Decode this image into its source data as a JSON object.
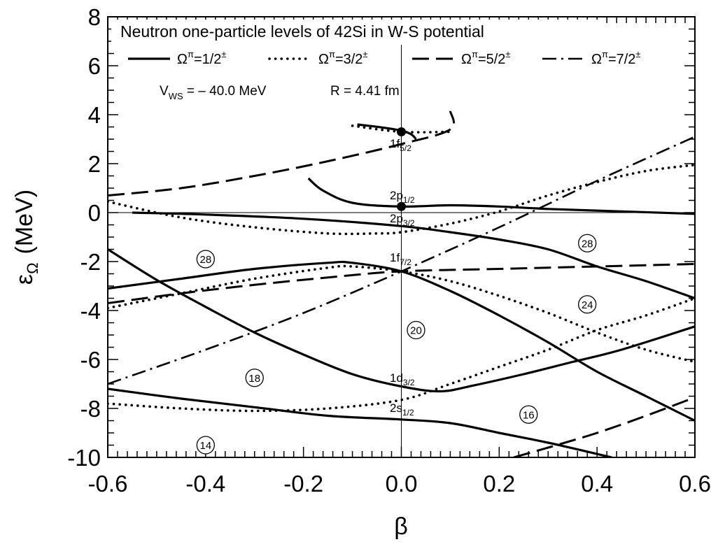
{
  "chart_data": {
    "type": "line",
    "title": "Neutron one-particle levels of 42Si in W-S potential",
    "xlabel": "β",
    "ylabel_main": "ε",
    "ylabel_sub": "Ω",
    "ylabel_unit": "(MeV)",
    "xlim": [
      -0.6,
      0.6
    ],
    "ylim": [
      -10,
      8
    ],
    "x_ticks": [
      "-0.6",
      "-0.4",
      "-0.2",
      "0.0",
      "0.2",
      "0.4",
      "0.6"
    ],
    "y_ticks": [
      "8",
      "6",
      "4",
      "2",
      "0",
      "-2",
      "-4",
      "-6",
      "-8",
      "-10"
    ],
    "grid": false,
    "legend_position": "top",
    "legend": [
      {
        "style": "solid",
        "base": "Ω",
        "sup": "π",
        "text": "=1/2",
        "pm": "±"
      },
      {
        "style": "dotted",
        "base": "Ω",
        "sup": "π",
        "text": "=3/2",
        "pm": "±"
      },
      {
        "style": "dashed",
        "base": "Ω",
        "sup": "π",
        "text": "=5/2",
        "pm": "±"
      },
      {
        "style": "dashdot",
        "base": "Ω",
        "sup": "π",
        "text": "=7/2",
        "pm": "±"
      }
    ],
    "parameters": {
      "v_main": "V",
      "v_sub": "WS",
      "v_value": " = – 40.0 MeV",
      "r_text": "R = 4.41 fm"
    },
    "orbitals": [
      {
        "main": "1f",
        "sub": "5/2",
        "energy": 3.3
      },
      {
        "main": "2p",
        "sub": "1/2",
        "energy": 0.25
      },
      {
        "main": "2p",
        "sub": "3/2",
        "energy": -0.55
      },
      {
        "main": "1f",
        "sub": "7/2",
        "energy": -2.4
      },
      {
        "main": "1d",
        "sub": "3/2",
        "energy": -7.2
      },
      {
        "main": "2s",
        "sub": "1/2",
        "energy": -8.45
      }
    ],
    "magic_numbers": [
      {
        "label": "28",
        "x": -0.4,
        "y": -1.9
      },
      {
        "label": "28",
        "x": 0.38,
        "y": -1.25
      },
      {
        "label": "24",
        "x": 0.38,
        "y": -3.75
      },
      {
        "label": "20",
        "x": 0.03,
        "y": -4.8
      },
      {
        "label": "18",
        "x": -0.3,
        "y": -6.75
      },
      {
        "label": "16",
        "x": 0.26,
        "y": -8.25
      },
      {
        "label": "14",
        "x": -0.4,
        "y": -9.5
      }
    ],
    "series": [
      {
        "omega": "1/2",
        "style": "solid",
        "points": [
          [
            -0.6,
            -7.2
          ],
          [
            -0.45,
            -7.6
          ],
          [
            -0.3,
            -7.95
          ],
          [
            -0.15,
            -8.3
          ],
          [
            0,
            -8.45
          ],
          [
            0.1,
            -8.6
          ],
          [
            0.2,
            -9.0
          ],
          [
            0.3,
            -9.4
          ],
          [
            0.43,
            -10.0
          ]
        ]
      },
      {
        "omega": "1/2",
        "style": "solid",
        "points": [
          [
            -0.6,
            -1.5
          ],
          [
            -0.5,
            -2.75
          ],
          [
            -0.4,
            -3.85
          ],
          [
            -0.3,
            -4.9
          ],
          [
            -0.2,
            -5.8
          ],
          [
            -0.1,
            -6.6
          ],
          [
            0,
            -7.1
          ],
          [
            0.08,
            -7.3
          ],
          [
            0.15,
            -7.05
          ],
          [
            0.25,
            -6.6
          ],
          [
            0.35,
            -6.1
          ],
          [
            0.45,
            -5.6
          ],
          [
            0.6,
            -4.65
          ]
        ]
      },
      {
        "omega": "1/2",
        "style": "solid",
        "points": [
          [
            -0.6,
            -3.1
          ],
          [
            -0.45,
            -2.7
          ],
          [
            -0.3,
            -2.3
          ],
          [
            -0.15,
            -2.05
          ],
          [
            -0.1,
            -2.05
          ],
          [
            0,
            -2.4
          ],
          [
            0.1,
            -3.2
          ],
          [
            0.2,
            -4.2
          ],
          [
            0.3,
            -5.3
          ],
          [
            0.4,
            -6.5
          ],
          [
            0.5,
            -7.5
          ],
          [
            0.6,
            -8.5
          ]
        ]
      },
      {
        "omega": "1/2",
        "style": "solid",
        "points": [
          [
            -0.55,
            0.0
          ],
          [
            -0.4,
            -0.08
          ],
          [
            -0.2,
            -0.25
          ],
          [
            0,
            -0.55
          ],
          [
            0.1,
            -0.8
          ],
          [
            0.2,
            -1.1
          ],
          [
            0.3,
            -1.5
          ],
          [
            0.4,
            -2.2
          ],
          [
            0.5,
            -2.8
          ],
          [
            0.6,
            -3.5
          ]
        ]
      },
      {
        "omega": "1/2",
        "style": "solid",
        "points": [
          [
            -0.19,
            1.4
          ],
          [
            -0.16,
            0.9
          ],
          [
            -0.1,
            0.4
          ],
          [
            0,
            0.25
          ],
          [
            0.1,
            0.3
          ],
          [
            0.2,
            0.25
          ],
          [
            0.3,
            0.15
          ],
          [
            0.45,
            0.05
          ],
          [
            0.6,
            -0.05
          ]
        ]
      },
      {
        "omega": "1/2",
        "style": "solid",
        "points": [
          [
            -0.09,
            3.6
          ],
          [
            -0.04,
            3.48
          ],
          [
            0,
            3.35
          ],
          [
            0.02,
            3.2
          ],
          [
            0.03,
            3.0
          ]
        ]
      },
      {
        "omega": "3/2",
        "style": "dotted",
        "points": [
          [
            -0.6,
            -7.8
          ],
          [
            -0.45,
            -8.0
          ],
          [
            -0.3,
            -8.1
          ],
          [
            -0.15,
            -8.0
          ],
          [
            0,
            -7.65
          ],
          [
            0.1,
            -7.0
          ],
          [
            0.2,
            -6.3
          ],
          [
            0.3,
            -5.6
          ],
          [
            0.4,
            -4.8
          ],
          [
            0.5,
            -4.2
          ],
          [
            0.6,
            -3.5
          ]
        ]
      },
      {
        "omega": "3/2",
        "style": "dotted",
        "points": [
          [
            -0.6,
            -3.9
          ],
          [
            -0.45,
            -3.3
          ],
          [
            -0.3,
            -2.7
          ],
          [
            -0.15,
            -2.25
          ],
          [
            -0.1,
            -2.2
          ],
          [
            0,
            -2.4
          ],
          [
            0.1,
            -2.8
          ],
          [
            0.2,
            -3.4
          ],
          [
            0.3,
            -4.1
          ],
          [
            0.4,
            -4.9
          ],
          [
            0.5,
            -5.6
          ],
          [
            0.6,
            -6.1
          ]
        ]
      },
      {
        "omega": "3/2",
        "style": "dotted",
        "points": [
          [
            -0.6,
            0.45
          ],
          [
            -0.45,
            -0.2
          ],
          [
            -0.3,
            -0.6
          ],
          [
            -0.15,
            -0.85
          ],
          [
            -0.05,
            -0.85
          ],
          [
            0,
            -0.8
          ],
          [
            0.1,
            -0.45
          ],
          [
            0.2,
            0.05
          ],
          [
            0.3,
            0.7
          ],
          [
            0.4,
            1.25
          ],
          [
            0.5,
            1.7
          ],
          [
            0.6,
            1.95
          ]
        ]
      },
      {
        "omega": "3/2",
        "style": "dotted",
        "points": [
          [
            -0.1,
            3.55
          ],
          [
            0,
            3.3
          ],
          [
            0.1,
            3.3
          ]
        ]
      },
      {
        "omega": "5/2",
        "style": "dashed",
        "points": [
          [
            -0.6,
            -3.7
          ],
          [
            -0.45,
            -3.3
          ],
          [
            -0.3,
            -2.95
          ],
          [
            -0.15,
            -2.65
          ],
          [
            0,
            -2.4
          ],
          [
            0.2,
            -2.3
          ],
          [
            0.4,
            -2.2
          ],
          [
            0.6,
            -2.1
          ]
        ]
      },
      {
        "omega": "5/2",
        "style": "dashed",
        "points": [
          [
            -0.6,
            0.7
          ],
          [
            -0.45,
            1.0
          ],
          [
            -0.3,
            1.5
          ],
          [
            -0.15,
            2.1
          ],
          [
            0,
            2.8
          ],
          [
            0.1,
            3.4
          ],
          [
            0.1,
            4.15
          ]
        ]
      },
      {
        "omega": "5/2",
        "style": "dashed",
        "points": [
          [
            0.23,
            -10.0
          ],
          [
            0.3,
            -9.6
          ],
          [
            0.4,
            -9.0
          ],
          [
            0.5,
            -8.3
          ],
          [
            0.6,
            -7.55
          ]
        ]
      },
      {
        "omega": "7/2",
        "style": "dashdot",
        "points": [
          [
            -0.6,
            -7.0
          ],
          [
            -0.4,
            -5.6
          ],
          [
            -0.2,
            -4.1
          ],
          [
            0,
            -2.4
          ],
          [
            0.2,
            -0.6
          ],
          [
            0.4,
            1.3
          ],
          [
            0.6,
            3.1
          ]
        ]
      }
    ]
  }
}
